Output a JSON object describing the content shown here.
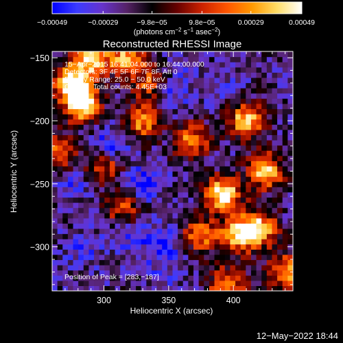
{
  "chart_data": {
    "type": "heatmap",
    "title": "Reconstructed RHESSI Image",
    "xlabel": "Heliocentric X (arcsec)",
    "ylabel": "Heliocentric Y (arcsec)",
    "xlim": [
      260,
      446
    ],
    "ylim": [
      -335,
      -145
    ],
    "x_ticks": [
      300,
      350,
      400
    ],
    "y_ticks": [
      -150,
      -200,
      -250,
      -300
    ],
    "x_tick_labels": [
      "300",
      "350",
      "400"
    ],
    "y_tick_labels": [
      "−150",
      "−200",
      "−250",
      "−300"
    ],
    "annotations": [
      "15−Apr−2015 16:41:04.000 to 16:44:00.000",
      "Detectors: 3F 4F 5F 6F 7F 8F, Att 0",
      "Energy Range: 25.0 − 50.0 keV",
      "Clean     Total counts: 4.45E+03"
    ],
    "peak_label": "Position of Peak = [283,−187]",
    "peak_position": [
      283,
      -187
    ],
    "colorbar": {
      "range": [
        -0.00049,
        0.00049
      ],
      "tick_values": [
        -0.00049,
        -0.00029,
        -9.8e-05,
        9.8e-05,
        0.00029,
        0.00049
      ],
      "tick_labels": [
        "−0.00049",
        "−0.00029",
        "−9.8e−05",
        "9.8e−05",
        "0.00029",
        "0.00049"
      ],
      "unit_prefix": "(photons cm",
      "unit_exp1": "−2",
      "unit_mid": " s",
      "unit_exp2": "−1",
      "unit_mid2": " asec",
      "unit_exp3": "−2",
      "unit_suffix": ")",
      "colors": [
        "#0000ff",
        "#3b3bff",
        "#6633cc",
        "#552266",
        "#000000",
        "#660000",
        "#cc2200",
        "#ff5500",
        "#ff9900",
        "#ffdd66",
        "#ffffff"
      ]
    },
    "hotspots": [
      {
        "x": 275,
        "y": -170,
        "value": 0.00049
      },
      {
        "x": 290,
        "y": -150,
        "value": 0.0004
      },
      {
        "x": 283,
        "y": -187,
        "value": 0.00045
      },
      {
        "x": 318,
        "y": -150,
        "value": 0.0003
      },
      {
        "x": 330,
        "y": -200,
        "value": 0.00028
      },
      {
        "x": 300,
        "y": -235,
        "value": 0.0002
      },
      {
        "x": 368,
        "y": -215,
        "value": 0.00025
      },
      {
        "x": 392,
        "y": -258,
        "value": 0.00049
      },
      {
        "x": 410,
        "y": -200,
        "value": 0.0004
      },
      {
        "x": 425,
        "y": -240,
        "value": 0.00038
      },
      {
        "x": 420,
        "y": -285,
        "value": 0.00035
      },
      {
        "x": 405,
        "y": -290,
        "value": 0.00036
      },
      {
        "x": 375,
        "y": -290,
        "value": 0.00025
      },
      {
        "x": 440,
        "y": -320,
        "value": 0.0003
      },
      {
        "x": 395,
        "y": -330,
        "value": 0.00028
      },
      {
        "x": 315,
        "y": -270,
        "value": 0.00015
      },
      {
        "x": 265,
        "y": -225,
        "value": 0.00018
      },
      {
        "x": 335,
        "y": -170,
        "value": 0.00015
      }
    ],
    "coldspots": [
      {
        "x": 305,
        "y": -220,
        "value": -0.00049
      },
      {
        "x": 330,
        "y": -250,
        "value": -0.00045
      },
      {
        "x": 350,
        "y": -180,
        "value": -0.0004
      },
      {
        "x": 320,
        "y": -290,
        "value": -0.00042
      },
      {
        "x": 345,
        "y": -300,
        "value": -0.00045
      },
      {
        "x": 285,
        "y": -300,
        "value": -0.00035
      },
      {
        "x": 275,
        "y": -250,
        "value": -0.00035
      },
      {
        "x": 345,
        "y": -325,
        "value": -0.0003
      },
      {
        "x": 360,
        "y": -160,
        "value": -0.0003
      },
      {
        "x": 390,
        "y": -170,
        "value": -0.0003
      }
    ]
  },
  "footer": {
    "date": "12−May−2022 18:44"
  }
}
